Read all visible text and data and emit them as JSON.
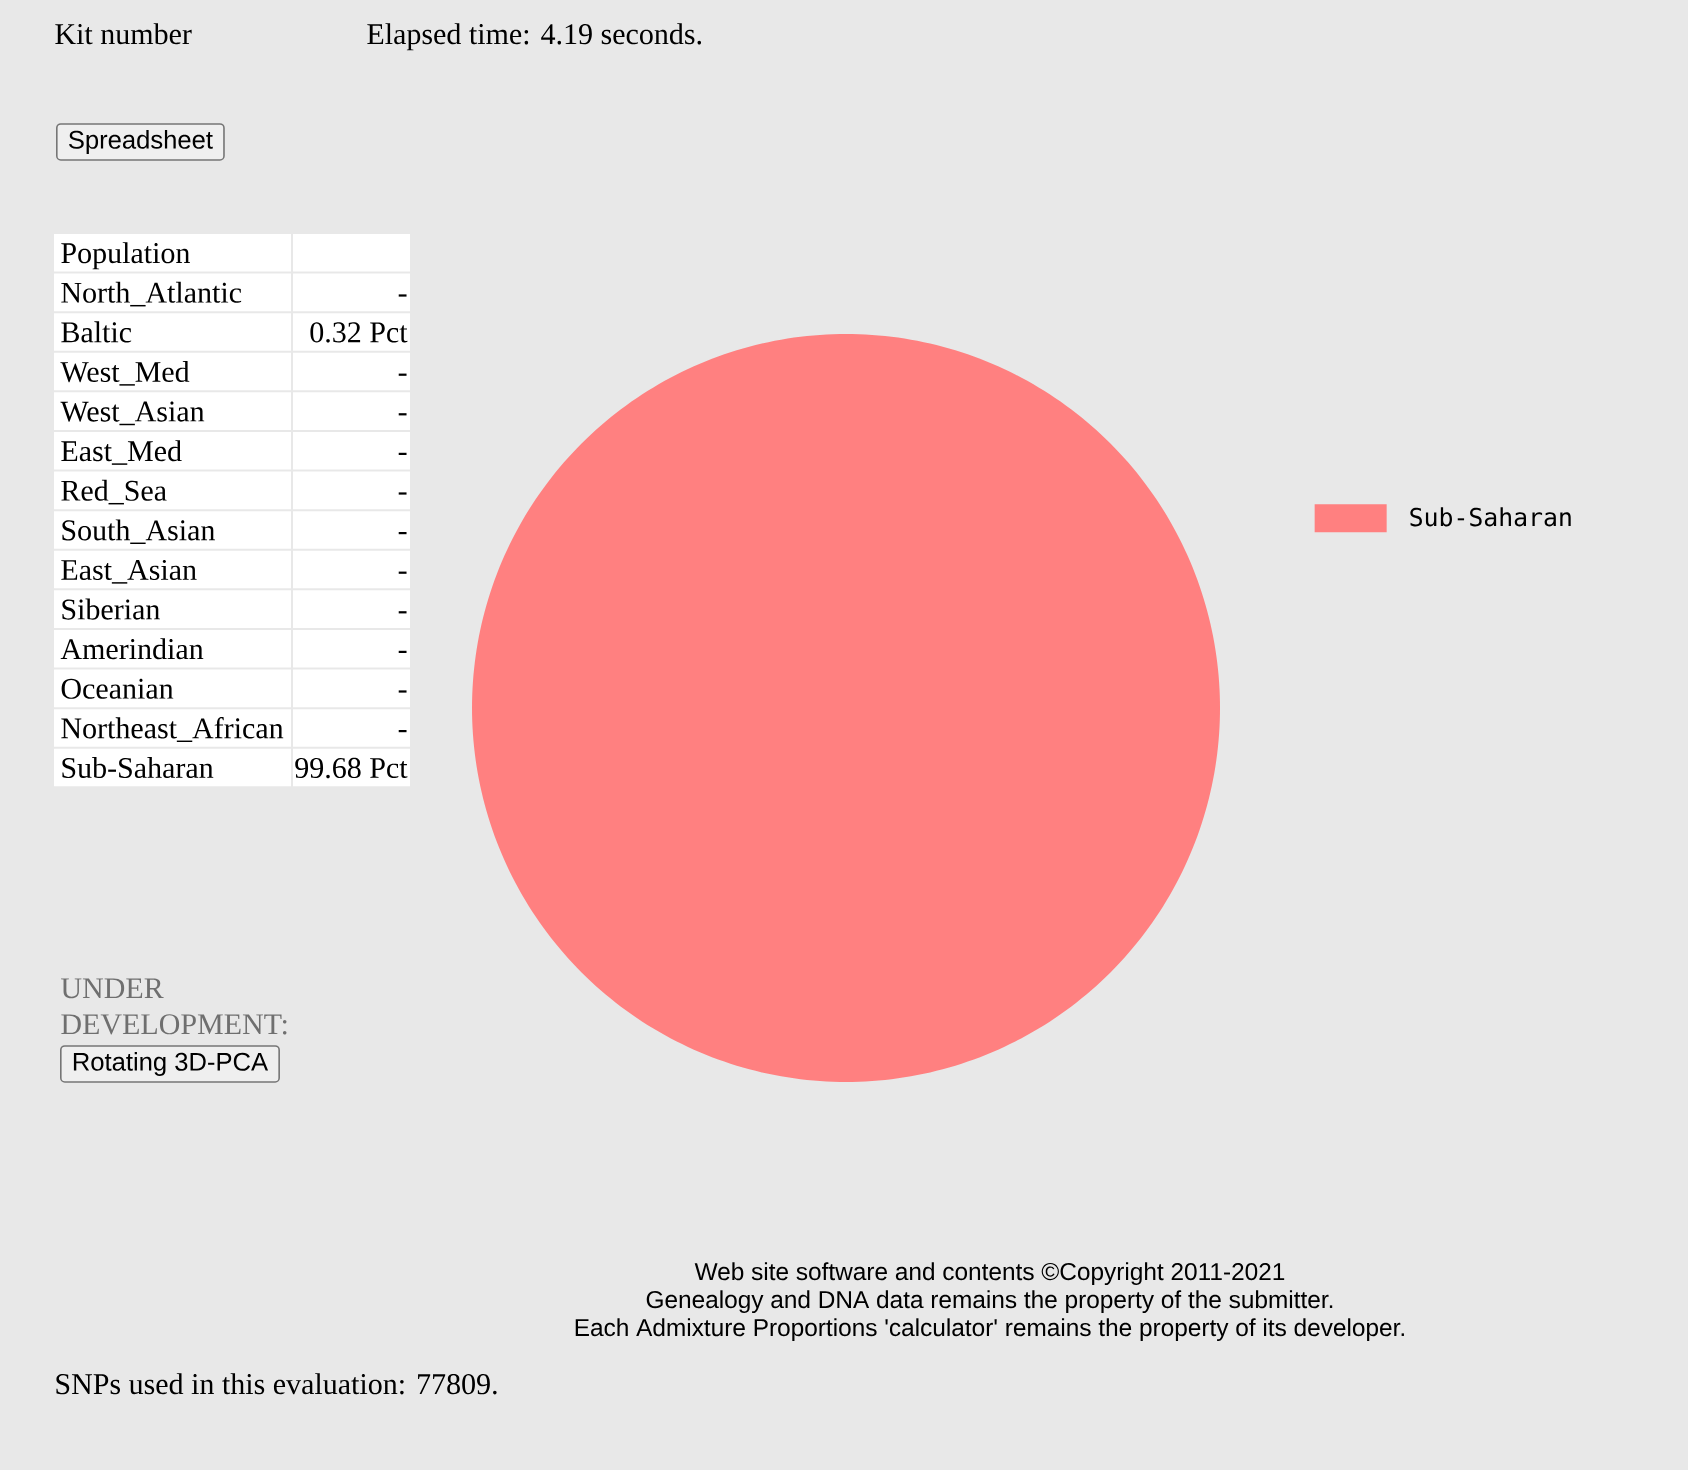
{
  "chart_data": [
    {
      "type": "other",
      "annotations": [
        "Population"
      ],
      "categories": [
        "North_Atlantic",
        "Baltic",
        "West_Med",
        "West_Asian",
        "East_Med",
        "Red_Sea",
        "South_Asian",
        "East_Asian",
        "Siberian",
        "Amerindian",
        "Oceanian",
        "Northeast_African",
        "Sub-Saharan"
      ],
      "value_labels": [
        "-",
        "0.32 Pct",
        "-",
        "-",
        "-",
        "-",
        "-",
        "-",
        "-",
        "-",
        "-",
        "-",
        "99.68 Pct"
      ]
    },
    {
      "type": "pie",
      "categories": [
        "Sub-Saharan"
      ],
      "values": [
        100
      ],
      "colors": [
        "#ff8080"
      ],
      "legend": "right",
      "annotations": [
        "Kit number",
        "Elapsed time: 4.19 seconds.",
        "Spreadsheet",
        "UNDER DEVELOPMENT:",
        "Rotating 3D-PCA",
        "Web site software and contents ©Copyright 2011-2021",
        "Genealogy and DNA data remains the property of the submitter.",
        "Each Admixture Proportions 'calculator' remains the property of its developer.",
        "SNPs used in this evaluation: 77809."
      ]
    }
  ]
}
